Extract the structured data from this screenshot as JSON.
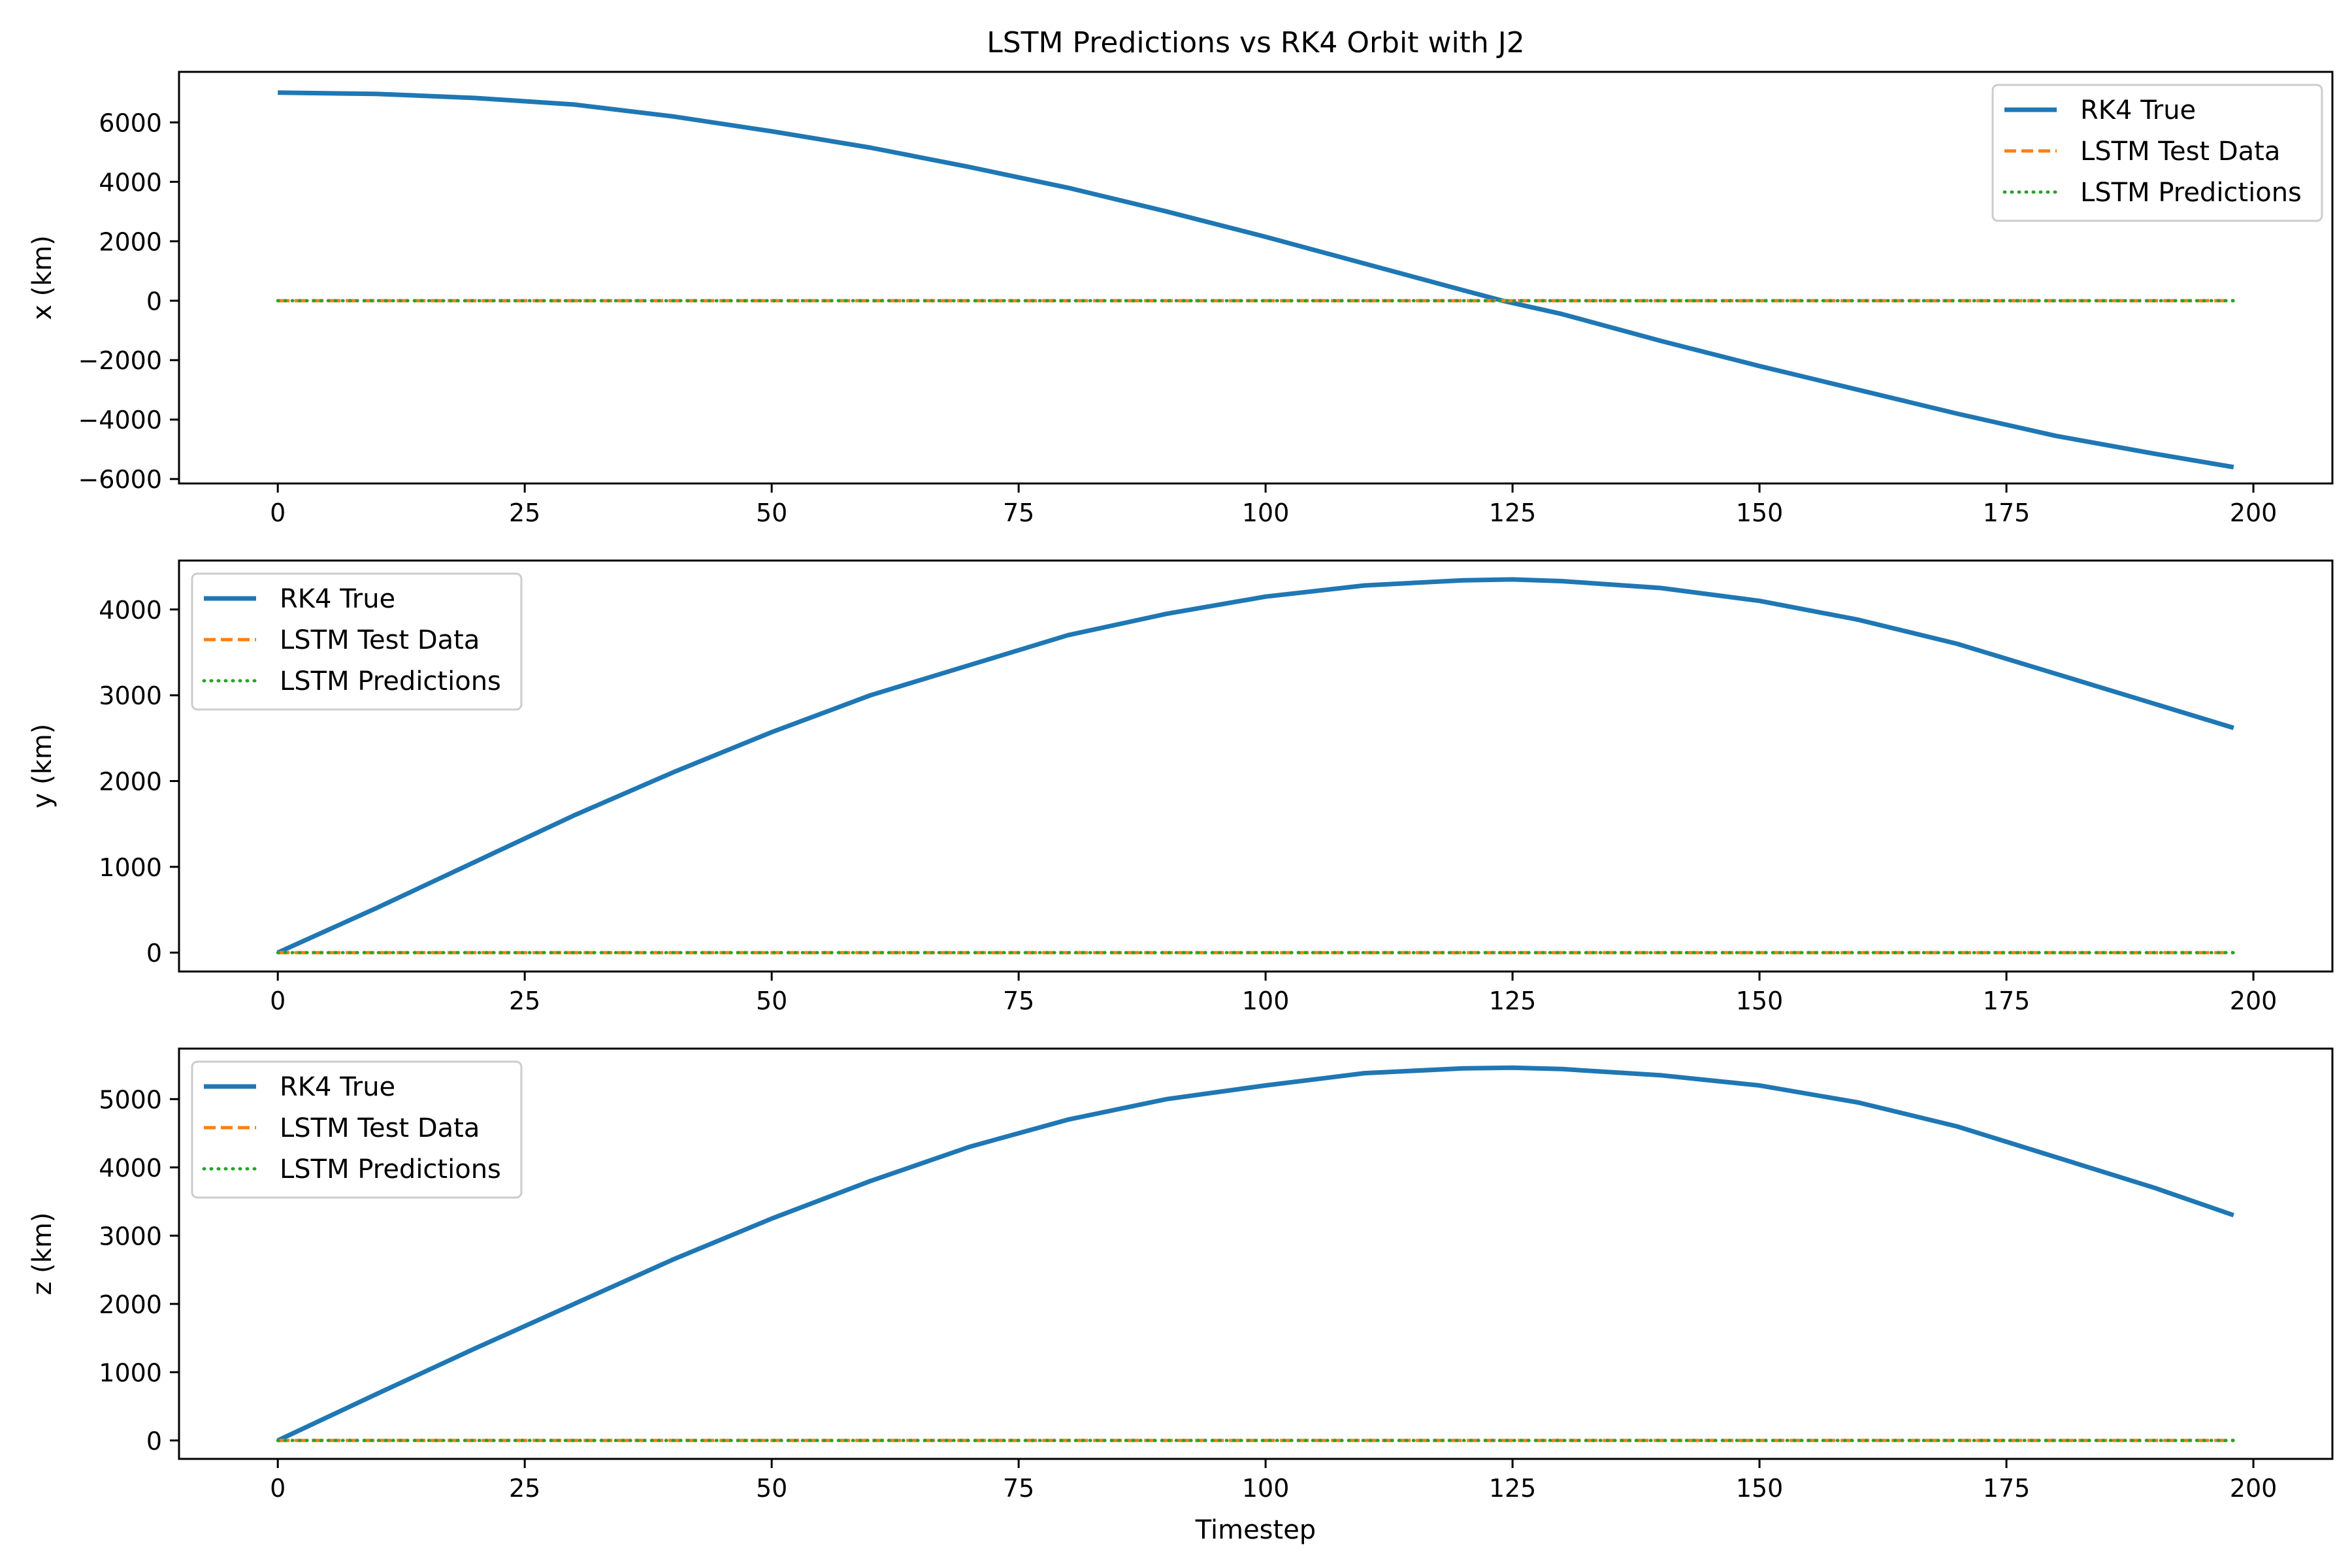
{
  "figure": {
    "title": "LSTM Predictions vs RK4 Orbit with J2",
    "xlabel": "Timestep"
  },
  "colors": {
    "rk4": "#1f77b4",
    "lstm_test": "#ff7f0e",
    "lstm_pred": "#2ca02c",
    "axes": "#000000",
    "legend_border": "#cccccc"
  },
  "chart_data": [
    {
      "type": "line",
      "title": "LSTM Predictions vs RK4 Orbit with J2",
      "xlabel": "",
      "ylabel": "x (km)",
      "xlim": [
        -10,
        208
      ],
      "ylim": [
        -6150,
        7700
      ],
      "xticks": [
        0,
        25,
        50,
        75,
        100,
        125,
        150,
        175,
        200
      ],
      "yticks": [
        -6000,
        -4000,
        -2000,
        0,
        2000,
        4000,
        6000
      ],
      "grid": false,
      "legend_position": "upper right",
      "series": [
        {
          "name": "RK4 True",
          "style": "solid",
          "x": [
            0,
            10,
            20,
            30,
            40,
            50,
            60,
            70,
            80,
            90,
            100,
            110,
            120,
            124,
            130,
            140,
            150,
            160,
            170,
            180,
            190,
            198
          ],
          "y": [
            7000,
            6960,
            6820,
            6600,
            6200,
            5700,
            5150,
            4500,
            3800,
            3000,
            2150,
            1250,
            350,
            0,
            -450,
            -1350,
            -2200,
            -3000,
            -3800,
            -4550,
            -5150,
            -5600
          ]
        },
        {
          "name": "LSTM Test Data",
          "style": "dashed",
          "x": [
            0,
            198
          ],
          "y": [
            0,
            0
          ]
        },
        {
          "name": "LSTM Predictions",
          "style": "dotted",
          "x": [
            0,
            198
          ],
          "y": [
            0,
            0
          ]
        }
      ]
    },
    {
      "type": "line",
      "title": "",
      "xlabel": "",
      "ylabel": "y (km)",
      "xlim": [
        -10,
        208
      ],
      "ylim": [
        -220,
        4570
      ],
      "xticks": [
        0,
        25,
        50,
        75,
        100,
        125,
        150,
        175,
        200
      ],
      "yticks": [
        0,
        1000,
        2000,
        3000,
        4000
      ],
      "grid": false,
      "legend_position": "upper left",
      "series": [
        {
          "name": "RK4 True",
          "style": "solid",
          "x": [
            0,
            10,
            20,
            30,
            40,
            50,
            60,
            70,
            80,
            90,
            100,
            110,
            120,
            125,
            130,
            140,
            150,
            160,
            170,
            180,
            190,
            198
          ],
          "y": [
            0,
            520,
            1060,
            1600,
            2100,
            2570,
            3000,
            3350,
            3700,
            3950,
            4150,
            4280,
            4340,
            4350,
            4330,
            4250,
            4100,
            3880,
            3600,
            3250,
            2900,
            2620
          ]
        },
        {
          "name": "LSTM Test Data",
          "style": "dashed",
          "x": [
            0,
            198
          ],
          "y": [
            0,
            0
          ]
        },
        {
          "name": "LSTM Predictions",
          "style": "dotted",
          "x": [
            0,
            198
          ],
          "y": [
            0,
            0
          ]
        }
      ]
    },
    {
      "type": "line",
      "title": "",
      "xlabel": "Timestep",
      "ylabel": "z (km)",
      "xlim": [
        -10,
        208
      ],
      "ylim": [
        -270,
        5740
      ],
      "xticks": [
        0,
        25,
        50,
        75,
        100,
        125,
        150,
        175,
        200
      ],
      "yticks": [
        0,
        1000,
        2000,
        3000,
        4000,
        5000
      ],
      "grid": false,
      "legend_position": "upper left",
      "series": [
        {
          "name": "RK4 True",
          "style": "solid",
          "x": [
            0,
            10,
            20,
            30,
            40,
            50,
            60,
            70,
            80,
            90,
            100,
            110,
            120,
            125,
            130,
            140,
            150,
            160,
            170,
            180,
            190,
            198
          ],
          "y": [
            0,
            680,
            1350,
            2000,
            2650,
            3250,
            3800,
            4300,
            4700,
            5000,
            5200,
            5380,
            5450,
            5460,
            5440,
            5350,
            5200,
            4950,
            4600,
            4150,
            3700,
            3300
          ]
        },
        {
          "name": "LSTM Test Data",
          "style": "dashed",
          "x": [
            0,
            198
          ],
          "y": [
            0,
            0
          ]
        },
        {
          "name": "LSTM Predictions",
          "style": "dotted",
          "x": [
            0,
            198
          ],
          "y": [
            0,
            0
          ]
        }
      ]
    }
  ]
}
